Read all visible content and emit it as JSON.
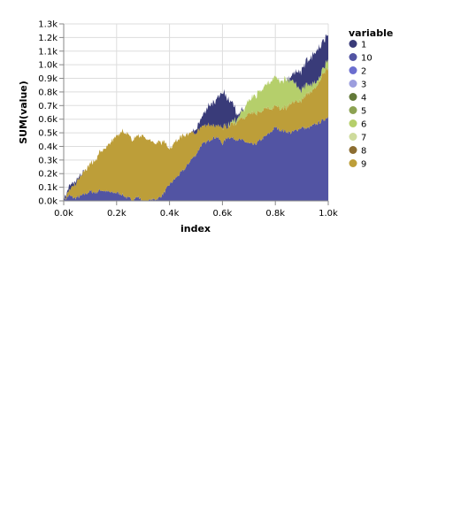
{
  "chart_data": {
    "type": "area",
    "stacked": true,
    "xlabel": "index",
    "ylabel": "SUM(value)",
    "xlim": [
      0,
      1000
    ],
    "ylim": [
      0,
      1300
    ],
    "x_ticks": [
      "0.0k",
      "0.2k",
      "0.4k",
      "0.6k",
      "0.8k",
      "1.0k"
    ],
    "y_ticks": [
      "0.0k",
      "0.1k",
      "0.2k",
      "0.3k",
      "0.4k",
      "0.5k",
      "0.6k",
      "0.7k",
      "0.8k",
      "0.9k",
      "1.0k",
      "1.1k",
      "1.2k",
      "1.3k"
    ],
    "grid": true,
    "legend": {
      "title": "variable",
      "position": "right",
      "items": [
        {
          "name": "1",
          "color": "#393b79"
        },
        {
          "name": "10",
          "color": "#5254a3"
        },
        {
          "name": "2",
          "color": "#6b6ecf"
        },
        {
          "name": "3",
          "color": "#9c9ede"
        },
        {
          "name": "4",
          "color": "#637939"
        },
        {
          "name": "5",
          "color": "#8ca252"
        },
        {
          "name": "6",
          "color": "#b5cf6b"
        },
        {
          "name": "7",
          "color": "#cedb9c"
        },
        {
          "name": "8",
          "color": "#8c6d31"
        },
        {
          "name": "9",
          "color": "#bd9e39"
        }
      ]
    },
    "x": [
      0,
      20,
      40,
      60,
      80,
      100,
      120,
      140,
      160,
      180,
      200,
      220,
      240,
      260,
      280,
      300,
      320,
      340,
      360,
      380,
      400,
      420,
      440,
      460,
      480,
      500,
      520,
      540,
      560,
      580,
      600,
      620,
      640,
      660,
      680,
      700,
      720,
      740,
      760,
      780,
      800,
      820,
      840,
      860,
      880,
      900,
      920,
      940,
      960,
      980,
      1000
    ],
    "series": [
      {
        "name": "10",
        "color": "#5254a3",
        "values": [
          0,
          40,
          20,
          30,
          50,
          70,
          60,
          80,
          70,
          60,
          60,
          50,
          20,
          10,
          30,
          0,
          0,
          10,
          20,
          60,
          120,
          160,
          200,
          240,
          300,
          340,
          410,
          430,
          460,
          470,
          420,
          470,
          460,
          450,
          440,
          420,
          410,
          440,
          470,
          500,
          540,
          520,
          510,
          500,
          520,
          540,
          530,
          550,
          570,
          590,
          620
        ]
      },
      {
        "name": "9",
        "color": "#bd9e39",
        "values": [
          10,
          30,
          90,
          140,
          180,
          200,
          240,
          290,
          310,
          370,
          420,
          460,
          470,
          440,
          450,
          480,
          450,
          420,
          410,
          370,
          250,
          270,
          260,
          240,
          200,
          160,
          140,
          120,
          100,
          90,
          120,
          80,
          110,
          140,
          160,
          220,
          230,
          210,
          200,
          180,
          160,
          160,
          170,
          210,
          210,
          200,
          250,
          260,
          280,
          350,
          360
        ]
      },
      {
        "name": "6",
        "color": "#b5cf6b",
        "values": [
          0,
          0,
          0,
          0,
          0,
          0,
          0,
          0,
          0,
          0,
          0,
          0,
          0,
          0,
          0,
          0,
          0,
          0,
          0,
          0,
          0,
          0,
          0,
          0,
          0,
          0,
          0,
          0,
          0,
          0,
          0,
          10,
          20,
          30,
          60,
          100,
          120,
          150,
          170,
          200,
          210,
          210,
          200,
          170,
          120,
          80,
          70,
          50,
          30,
          30,
          70
        ]
      },
      {
        "name": "1",
        "color": "#393b79",
        "values": [
          10,
          30,
          20,
          10,
          0,
          0,
          0,
          0,
          0,
          0,
          0,
          0,
          0,
          0,
          0,
          0,
          0,
          0,
          0,
          0,
          0,
          0,
          0,
          0,
          0,
          20,
          60,
          120,
          160,
          200,
          260,
          200,
          120,
          20,
          0,
          0,
          0,
          0,
          0,
          0,
          0,
          0,
          0,
          20,
          100,
          150,
          180,
          200,
          230,
          200,
          180
        ]
      }
    ]
  }
}
